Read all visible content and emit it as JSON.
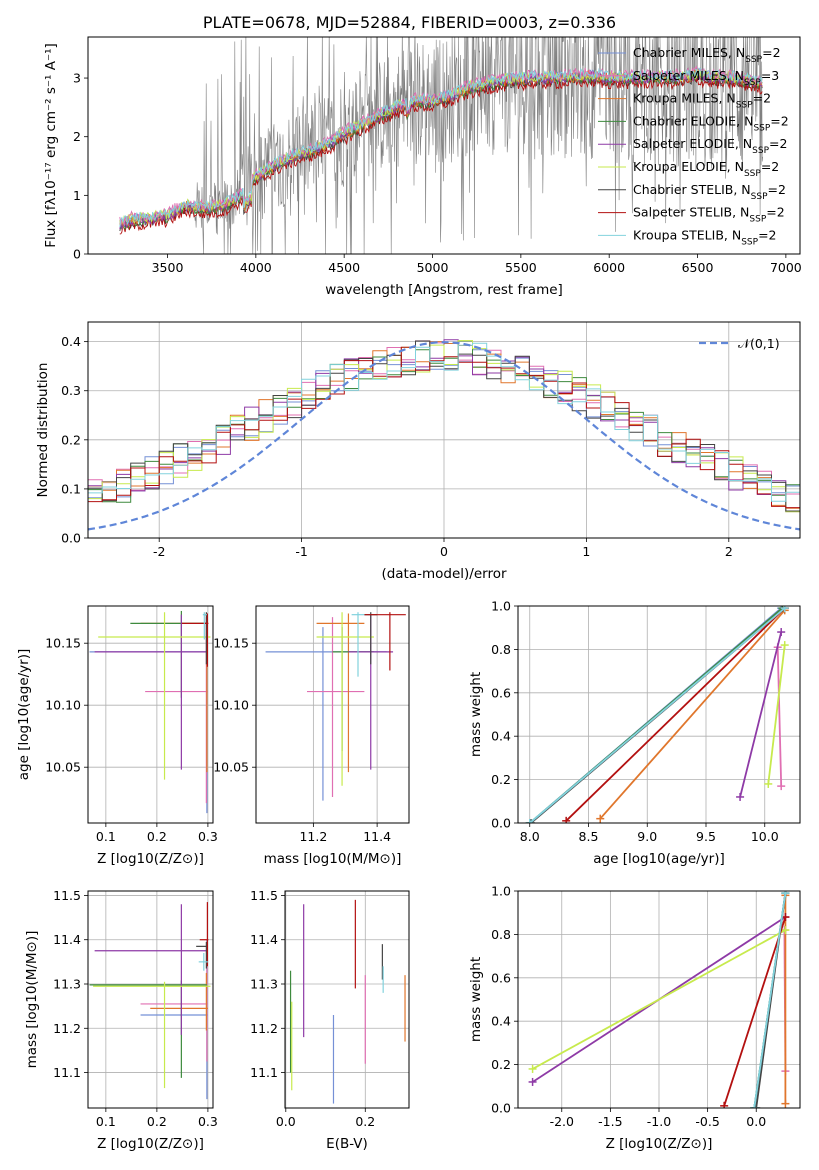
{
  "colors": {
    "series": [
      "#7590d6",
      "#e06fb2",
      "#e0762c",
      "#3e8a3e",
      "#8e3aa6",
      "#c7ea4d",
      "#444444",
      "#b31010",
      "#82d2dd"
    ],
    "normal": "#5f86d8",
    "noisy_flux": "#808080"
  },
  "series_names": [
    "Chabrier MILES",
    "Salpeter MILES",
    "Kroupa MILES",
    "Chabrier ELODIE",
    "Salpeter ELODIE",
    "Kroupa ELODIE",
    "Chabrier STELIB",
    "Salpeter STELIB",
    "Kroupa STELIB"
  ],
  "nssp": [
    "2",
    "3",
    "2",
    "2",
    "2",
    "2",
    "2",
    "2",
    "2"
  ],
  "chart_data": [
    {
      "type": "line",
      "title": "PLATE=0678, MJD=52884, FIBERID=0003, z=0.336",
      "xlabel": "wavelength [Angstrom, rest frame]",
      "ylabel": "Flux [fλ10⁻¹⁷ erg cm⁻² s⁻¹ A⁻¹]",
      "xlim": [
        3050,
        7080
      ],
      "ylim": [
        0,
        3.7
      ],
      "xticks": [
        3500,
        4000,
        4500,
        5000,
        5500,
        6000,
        6500,
        7000
      ],
      "yticks": [
        0,
        1,
        2,
        3
      ],
      "legend": "upper right",
      "model_continuum": {
        "x": [
          3230,
          3300,
          3400,
          3500,
          3600,
          3700,
          3800,
          3900,
          4000,
          4100,
          4200,
          4300,
          4400,
          4500,
          4600,
          4700,
          4800,
          4900,
          5000,
          5100,
          5200,
          5300,
          5400,
          5500,
          5600,
          5700,
          5800,
          5900,
          6000,
          6100,
          6200,
          6300,
          6400,
          6500,
          6600,
          6700,
          6800,
          6870
        ],
        "y": [
          0.5,
          0.58,
          0.6,
          0.65,
          0.82,
          0.78,
          0.8,
          0.95,
          1.3,
          1.5,
          1.65,
          1.75,
          1.85,
          2.05,
          2.2,
          2.35,
          2.5,
          2.6,
          2.6,
          2.68,
          2.82,
          2.9,
          2.95,
          2.98,
          3.0,
          3.0,
          3.02,
          3.03,
          3.0,
          3.0,
          3.0,
          3.02,
          3.0,
          3.05,
          3.0,
          3.0,
          2.95,
          2.9
        ]
      }
    },
    {
      "type": "line",
      "xlabel": "(data-model)/error",
      "ylabel": "Normed distribution",
      "xlim": [
        -2.5,
        2.5
      ],
      "ylim": [
        0,
        0.44
      ],
      "xticks": [
        -2,
        -1,
        0,
        1,
        2
      ],
      "yticks": [
        0.0,
        0.1,
        0.2,
        0.3,
        0.4
      ],
      "legend": "upper right",
      "normal_label": "𝒩(0,1)"
    },
    {
      "type": "scatter",
      "xlabel": "Z [log10(Z/Z⊙)]",
      "ylabel": "age  [log10(age/yr)]",
      "xlim": [
        0.065,
        0.31
      ],
      "ylim": [
        10.005,
        10.18
      ],
      "xticks": [
        0.1,
        0.2,
        0.3
      ],
      "yticks": [
        10.05,
        10.1,
        10.15
      ],
      "points": [
        {
          "x": 0.298,
          "y": 10.143,
          "xerr": [
            0.23,
            0.002
          ],
          "yerr": [
            0.13,
            0.02
          ]
        },
        {
          "x": 0.297,
          "y": 10.111,
          "xerr": [
            0.12,
            0.003
          ],
          "yerr": [
            0.09,
            0.06
          ]
        },
        {
          "x": 0.298,
          "y": 10.166,
          "xerr": [
            0.13,
            0.002
          ],
          "yerr": [
            0.12,
            0.008
          ]
        },
        {
          "x": 0.248,
          "y": 10.166,
          "xerr": [
            0.1,
            0.05
          ],
          "yerr": [
            0.06,
            0.01
          ]
        },
        {
          "x": 0.248,
          "y": 10.143,
          "xerr": [
            0.17,
            0.05
          ],
          "yerr": [
            0.095,
            0.03
          ]
        },
        {
          "x": 0.215,
          "y": 10.155,
          "xerr": [
            0.13,
            0.09
          ],
          "yerr": [
            0.115,
            0.02
          ]
        },
        {
          "x": 0.297,
          "y": 10.173,
          "xerr": [
            0.005,
            0.003
          ],
          "yerr": [
            0.04,
            0.002
          ]
        },
        {
          "x": 0.299,
          "y": 10.166,
          "xerr": [
            0.05,
            0.002
          ],
          "yerr": [
            0.035,
            0.008
          ]
        },
        {
          "x": 0.293,
          "y": 10.173,
          "xerr": [
            0.003,
            0.005
          ],
          "yerr": [
            0.02,
            0.002
          ]
        }
      ]
    },
    {
      "type": "scatter",
      "xlabel": "mass [log10(M/M⊙)]",
      "xlim": [
        11.02,
        11.5
      ],
      "ylim": [
        10.005,
        10.18
      ],
      "xticks": [
        11.2,
        11.4
      ],
      "yticks": [
        10.05,
        10.1,
        10.15
      ],
      "points": [
        {
          "x": 11.23,
          "y": 10.143,
          "xerr": [
            0.18,
            0.2
          ],
          "yerr": [
            0.12,
            0.02
          ]
        },
        {
          "x": 11.26,
          "y": 10.111,
          "xerr": [
            0.08,
            0.1
          ],
          "yerr": [
            0.085,
            0.06
          ]
        },
        {
          "x": 11.31,
          "y": 10.166,
          "xerr": [
            0.1,
            0.05
          ],
          "yerr": [
            0.12,
            0.008
          ]
        },
        {
          "x": 11.29,
          "y": 10.143,
          "xerr": [
            0.03,
            0.1
          ],
          "yerr": [
            0.08,
            0.02
          ]
        },
        {
          "x": 11.38,
          "y": 10.143,
          "xerr": [
            0.07,
            0.07
          ],
          "yerr": [
            0.095,
            0.03
          ]
        },
        {
          "x": 11.29,
          "y": 10.155,
          "xerr": [
            0.08,
            0.1
          ],
          "yerr": [
            0.12,
            0.02
          ]
        },
        {
          "x": 11.38,
          "y": 10.173,
          "xerr": [
            0.02,
            0.02
          ],
          "yerr": [
            0.04,
            0.002
          ]
        },
        {
          "x": 11.44,
          "y": 10.173,
          "xerr": [
            0.08,
            0.05
          ],
          "yerr": [
            0.045,
            0.002
          ]
        },
        {
          "x": 11.34,
          "y": 10.173,
          "xerr": [
            0.02,
            0.02
          ],
          "yerr": [
            0.05,
            0.002
          ]
        }
      ]
    },
    {
      "type": "line",
      "xlabel": "age  [log10(age/yr)]",
      "ylabel": "mass weight",
      "xlim": [
        7.9,
        10.3
      ],
      "ylim": [
        0,
        1
      ],
      "xticks": [
        8.0,
        8.5,
        9.0,
        9.5,
        10.0
      ],
      "yticks": [
        0.0,
        0.2,
        0.4,
        0.6,
        0.8,
        1.0
      ],
      "series": [
        {
          "x": [
            8.0,
            10.14
          ],
          "y": [
            0.0,
            0.99
          ]
        },
        {
          "x": [
            10.14,
            10.11
          ],
          "y": [
            0.17,
            0.81
          ]
        },
        {
          "x": [
            8.6,
            10.17
          ],
          "y": [
            0.02,
            0.98
          ]
        },
        {
          "x": [
            8.0,
            10.15
          ],
          "y": [
            0.0,
            0.99
          ]
        },
        {
          "x": [
            9.79,
            10.14
          ],
          "y": [
            0.12,
            0.88
          ]
        },
        {
          "x": [
            10.03,
            10.17
          ],
          "y": [
            0.18,
            0.82
          ]
        },
        {
          "x": [
            8.01,
            10.17
          ],
          "y": [
            0.0,
            0.99
          ]
        },
        {
          "x": [
            8.31,
            10.17
          ],
          "y": [
            0.01,
            0.99
          ]
        },
        {
          "x": [
            8.0,
            10.17
          ],
          "y": [
            0.0,
            0.99
          ]
        }
      ]
    },
    {
      "type": "scatter",
      "xlabel": "Z [log10(Z/Z⊙)]",
      "ylabel": "mass [log10(M/M⊙)]",
      "xlim": [
        0.065,
        0.31
      ],
      "ylim": [
        11.02,
        11.51
      ],
      "xticks": [
        0.1,
        0.2,
        0.3
      ],
      "yticks": [
        11.1,
        11.2,
        11.3,
        11.4,
        11.5
      ],
      "points": [
        {
          "x": 0.298,
          "y": 11.23,
          "xerr": [
            0.13,
            0.002
          ],
          "yerr": [
            0.19,
            0.17
          ]
        },
        {
          "x": 0.298,
          "y": 11.255,
          "xerr": [
            0.13,
            0.002
          ],
          "yerr": [
            0.13,
            0.1
          ]
        },
        {
          "x": 0.297,
          "y": 11.245,
          "xerr": [
            0.11,
            0.003
          ],
          "yerr": [
            0.05,
            0.08
          ]
        },
        {
          "x": 0.248,
          "y": 11.298,
          "xerr": [
            0.18,
            0.05
          ],
          "yerr": [
            0.21,
            0.01
          ]
        },
        {
          "x": 0.248,
          "y": 11.375,
          "xerr": [
            0.17,
            0.05
          ],
          "yerr": [
            0.19,
            0.105
          ]
        },
        {
          "x": 0.215,
          "y": 11.295,
          "xerr": [
            0.14,
            0.09
          ],
          "yerr": [
            0.23,
            0.01
          ]
        },
        {
          "x": 0.297,
          "y": 11.385,
          "xerr": [
            0.02,
            0.003
          ],
          "yerr": [
            0.05,
            0.01
          ]
        },
        {
          "x": 0.299,
          "y": 11.4,
          "xerr": [
            0.015,
            0.002
          ],
          "yerr": [
            0.06,
            0.085
          ]
        },
        {
          "x": 0.292,
          "y": 11.35,
          "xerr": [
            0.01,
            0.008
          ],
          "yerr": [
            0.02,
            0.02
          ]
        }
      ]
    },
    {
      "type": "scatter",
      "xlabel": "E(B-V)",
      "xlim": [
        -0.002,
        0.31
      ],
      "ylim": [
        11.02,
        11.51
      ],
      "xticks": [
        0.0,
        0.2
      ],
      "yticks": [
        11.1,
        11.2,
        11.3,
        11.4,
        11.5
      ],
      "points": [
        {
          "x": 0.12,
          "y": 11.13,
          "xerr": [
            0,
            0
          ],
          "yerr": [
            0.1,
            0.1
          ]
        },
        {
          "x": 0.2,
          "y": 11.22,
          "xerr": [
            0,
            0
          ],
          "yerr": [
            0.1,
            0.1
          ]
        },
        {
          "x": 0.3,
          "y": 11.24,
          "xerr": [
            0,
            0
          ],
          "yerr": [
            0.07,
            0.08
          ]
        },
        {
          "x": 0.012,
          "y": 11.2,
          "xerr": [
            0,
            0
          ],
          "yerr": [
            0.1,
            0.13
          ]
        },
        {
          "x": 0.045,
          "y": 11.33,
          "xerr": [
            0,
            0
          ],
          "yerr": [
            0.15,
            0.15
          ]
        },
        {
          "x": 0.015,
          "y": 11.16,
          "xerr": [
            0,
            0
          ],
          "yerr": [
            0.1,
            0.1
          ]
        },
        {
          "x": 0.243,
          "y": 11.34,
          "xerr": [
            0,
            0
          ],
          "yerr": [
            0.03,
            0.05
          ]
        },
        {
          "x": 0.175,
          "y": 11.39,
          "xerr": [
            0,
            0
          ],
          "yerr": [
            0.1,
            0.1
          ]
        },
        {
          "x": 0.245,
          "y": 11.31,
          "xerr": [
            0,
            0
          ],
          "yerr": [
            0.03,
            0.03
          ]
        }
      ]
    },
    {
      "type": "line",
      "xlabel": "Z [log10(Z/Z⊙)]",
      "ylabel": "mass weight",
      "xlim": [
        -2.45,
        0.45
      ],
      "ylim": [
        0,
        1
      ],
      "xticks": [
        -2.0,
        -1.5,
        -1.0,
        -0.5,
        0.0
      ],
      "yticks": [
        0.0,
        0.2,
        0.4,
        0.6,
        0.8,
        1.0
      ],
      "series": [
        {
          "x": [
            -0.02,
            0.3
          ],
          "y": [
            0.0,
            0.99
          ]
        },
        {
          "x": [
            0.3,
            0.29
          ],
          "y": [
            0.17,
            0.82
          ]
        },
        {
          "x": [
            0.3,
            0.3
          ],
          "y": [
            0.02,
            0.98
          ]
        },
        {
          "x": [
            -0.02,
            0.3
          ],
          "y": [
            0.0,
            0.99
          ]
        },
        {
          "x": [
            -2.3,
            0.3
          ],
          "y": [
            0.12,
            0.88
          ]
        },
        {
          "x": [
            -2.3,
            0.3
          ],
          "y": [
            0.18,
            0.82
          ]
        },
        {
          "x": [
            0.0,
            0.3
          ],
          "y": [
            0.0,
            0.99
          ]
        },
        {
          "x": [
            -0.33,
            0.3
          ],
          "y": [
            0.01,
            0.88
          ]
        },
        {
          "x": [
            -0.02,
            0.3
          ],
          "y": [
            0.0,
            0.99
          ]
        }
      ]
    }
  ]
}
